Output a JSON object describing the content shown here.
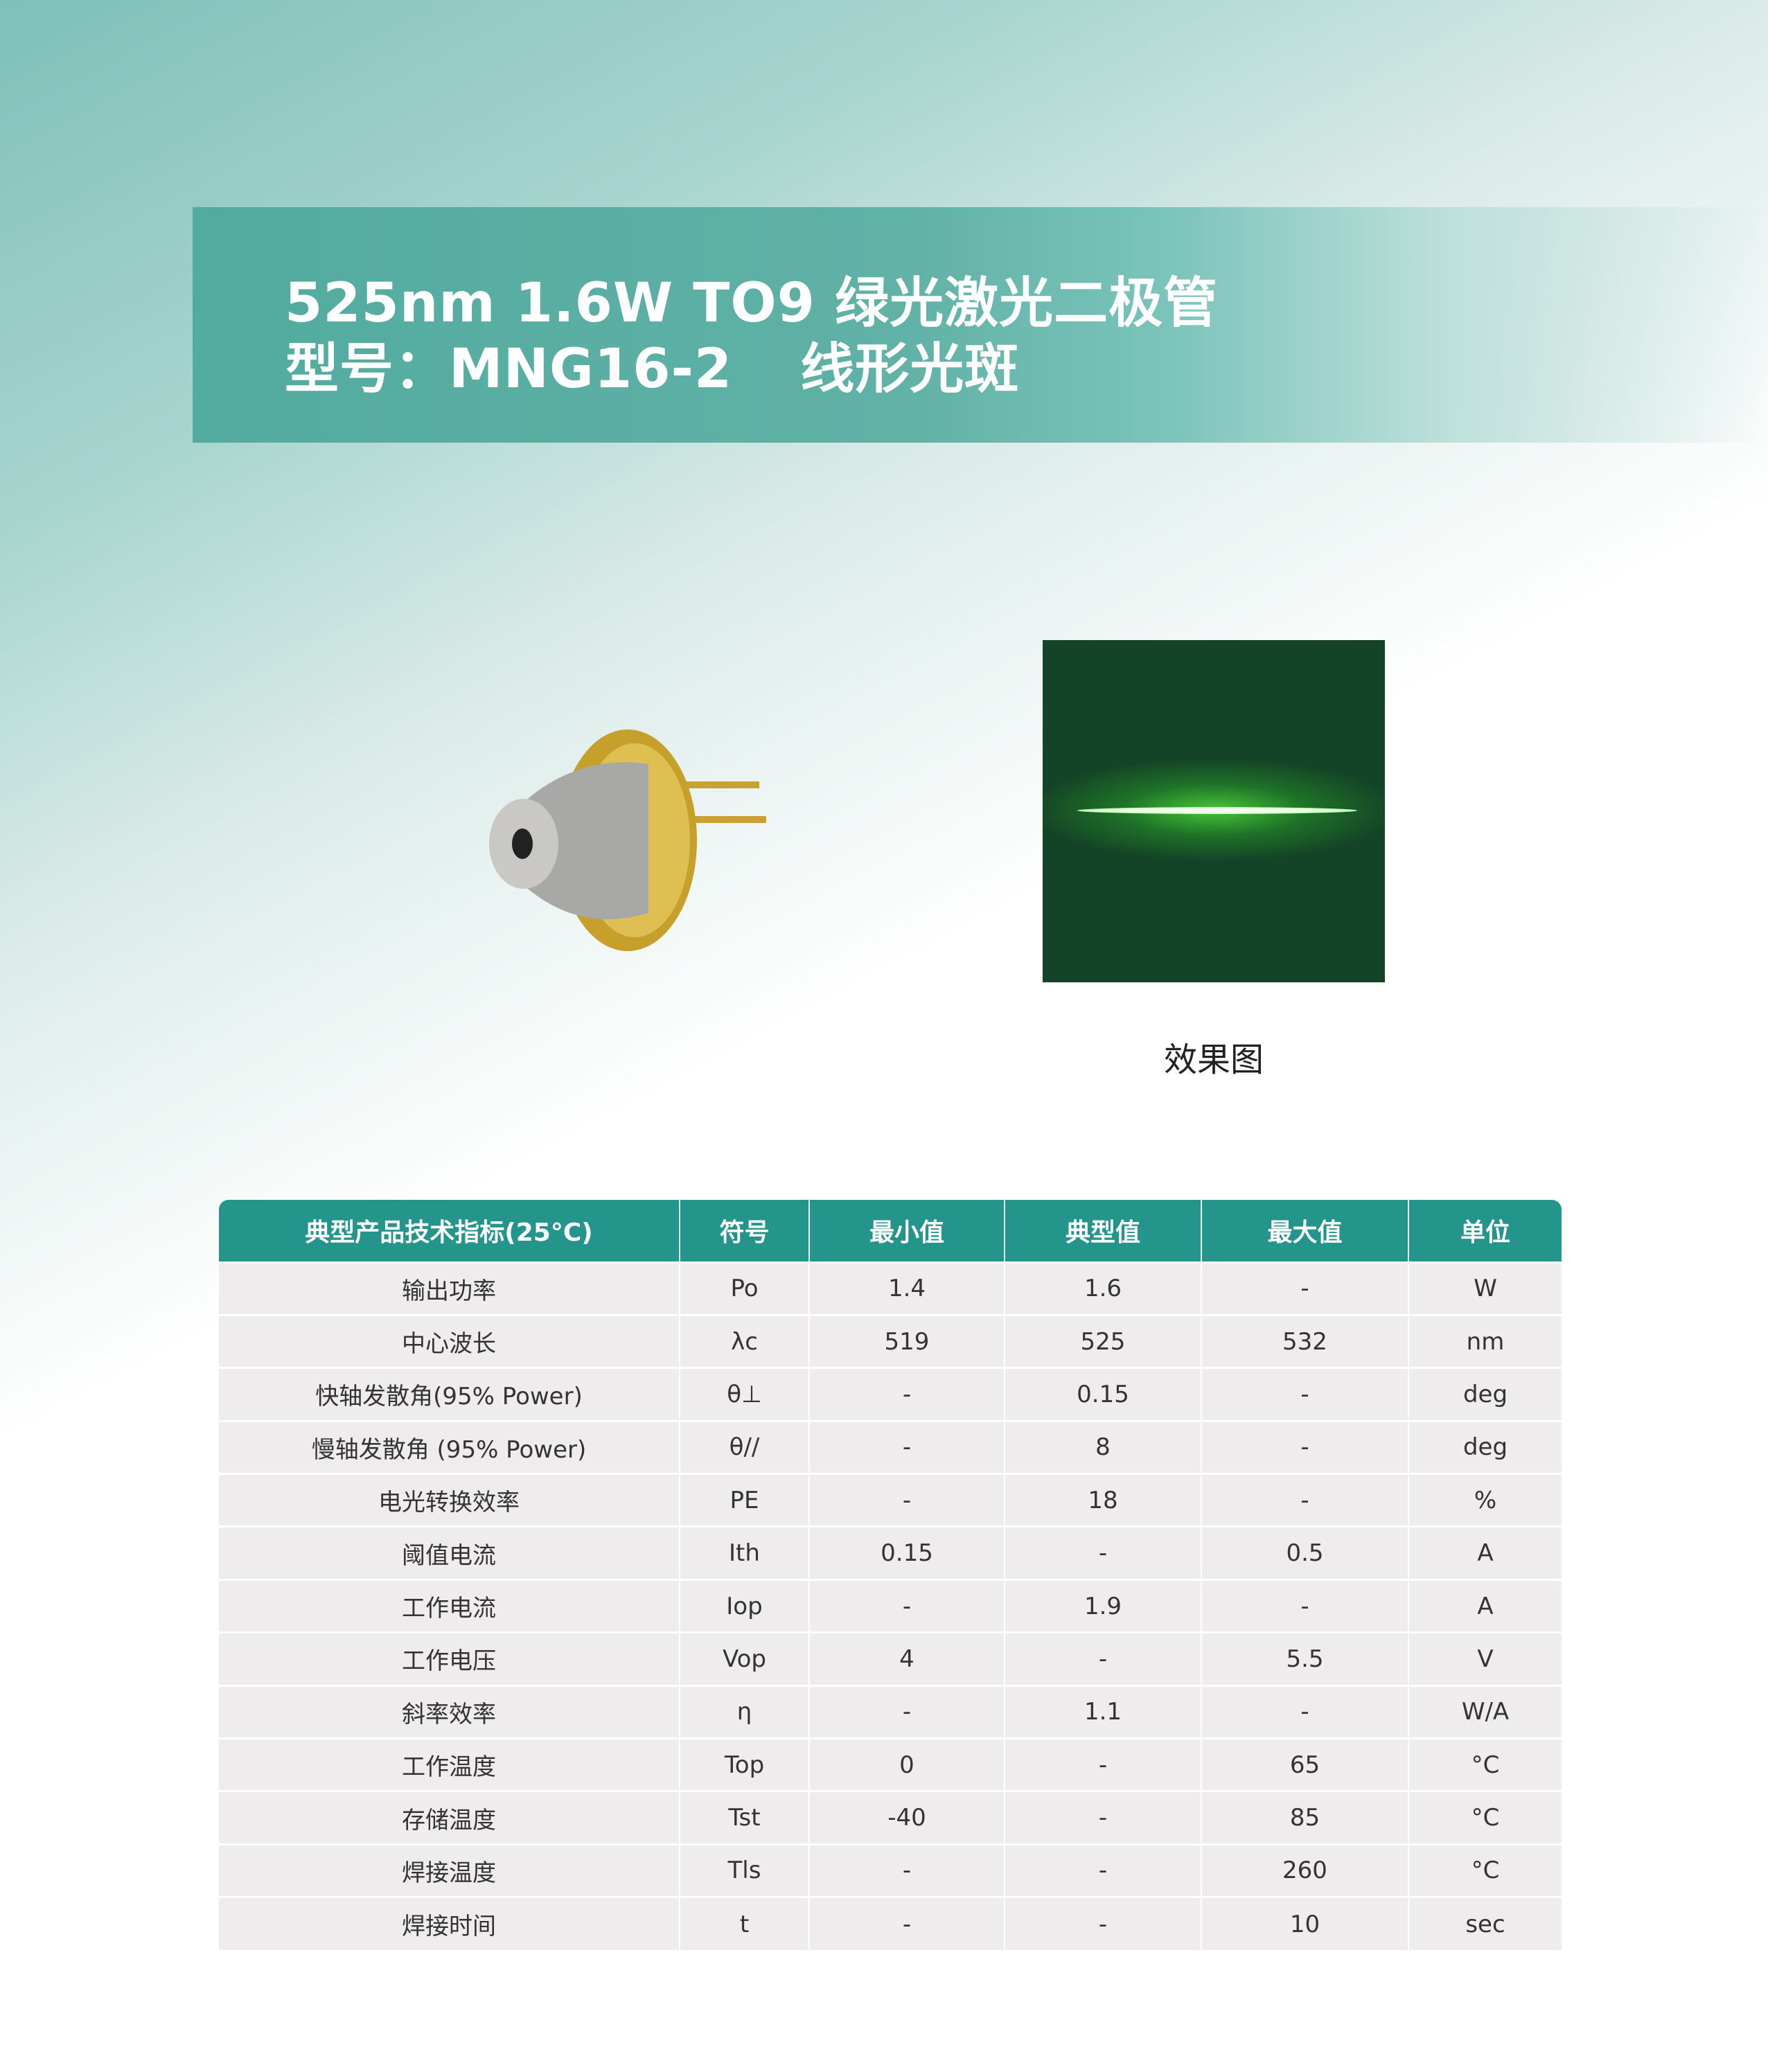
{
  "header": {
    "title_line1": "525nm 1.6W TO9 绿光激光二极管",
    "model_label": "型号：MNG16-2",
    "spot_type": "线形光斑"
  },
  "images": {
    "beam_caption": "效果图",
    "beam_color": "#144427"
  },
  "table": {
    "headers": [
      "典型产品技术指标(25°C)",
      "符号",
      "最小值",
      "典型值",
      "最大值",
      "单位"
    ],
    "rows": [
      [
        "输出功率",
        "Po",
        "1.4",
        "1.6",
        "-",
        "W"
      ],
      [
        "中心波长",
        "λc",
        "519",
        "525",
        "532",
        "nm"
      ],
      [
        "快轴发散角(95% Power)",
        "θ⊥",
        "-",
        "0.15",
        "-",
        "deg"
      ],
      [
        "慢轴发散角 (95% Power)",
        "θ//",
        "-",
        "8",
        "-",
        "deg"
      ],
      [
        "电光转换效率",
        "PE",
        "-",
        "18",
        "-",
        "%"
      ],
      [
        "阈值电流",
        "Ith",
        "0.15",
        "-",
        "0.5",
        "A"
      ],
      [
        "工作电流",
        "Iop",
        "-",
        "1.9",
        "-",
        "A"
      ],
      [
        "工作电压",
        "Vop",
        "4",
        "-",
        "5.5",
        "V"
      ],
      [
        "斜率效率",
        "η",
        "-",
        "1.1",
        "-",
        "W/A"
      ],
      [
        "工作温度",
        "Top",
        "0",
        "-",
        "65",
        "°C"
      ],
      [
        "存储温度",
        "Tst",
        "-40",
        "-",
        "85",
        "°C"
      ],
      [
        "焊接温度",
        "Tls",
        "-",
        "-",
        "260",
        "°C"
      ],
      [
        "焊接时间",
        "t",
        "-",
        "-",
        "10",
        "sec"
      ]
    ],
    "header_color": "#24958b"
  }
}
